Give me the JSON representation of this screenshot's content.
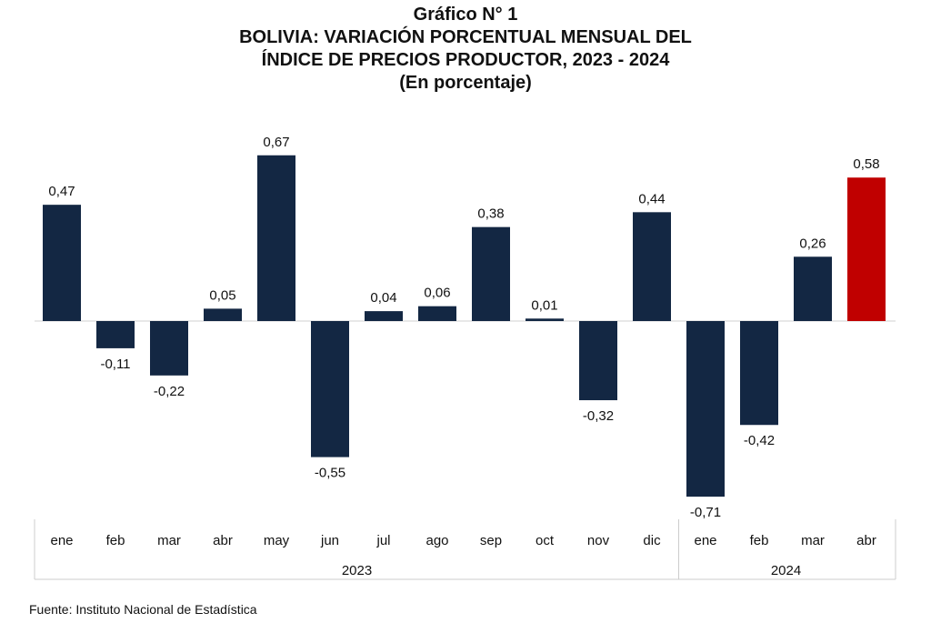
{
  "titles": {
    "line1": "Gráfico N° 1",
    "line2": "BOLIVIA: VARIACIÓN PORCENTUAL MENSUAL DEL",
    "line3": "ÍNDICE DE PRECIOS PRODUCTOR, 2023 - 2024",
    "line4": "(En porcentaje)"
  },
  "source": "Fuente: Instituto Nacional de Estadística",
  "colors": {
    "default_bar": "#132743",
    "highlight_bar": "#c00000",
    "zero_line": "#d0d0d0",
    "axis_line": "#cccccc"
  },
  "chart_data": {
    "type": "bar",
    "title": "BOLIVIA: VARIACIÓN PORCENTUAL MENSUAL DEL ÍNDICE DE PRECIOS PRODUCTOR, 2023 - 2024",
    "subtitle": "(En porcentaje)",
    "categories": [
      "ene",
      "feb",
      "mar",
      "abr",
      "may",
      "jun",
      "jul",
      "ago",
      "sep",
      "oct",
      "nov",
      "dic",
      "ene",
      "feb",
      "mar",
      "abr"
    ],
    "groups": [
      {
        "label": "2023",
        "start": 0,
        "count": 12
      },
      {
        "label": "2024",
        "start": 12,
        "count": 4
      }
    ],
    "values": [
      0.47,
      -0.11,
      -0.22,
      0.05,
      0.67,
      -0.55,
      0.04,
      0.06,
      0.38,
      0.01,
      -0.32,
      0.44,
      -0.71,
      -0.42,
      0.26,
      0.58
    ],
    "value_labels": [
      "0,47",
      "-0,11",
      "-0,22",
      "0,05",
      "0,67",
      "-0,55",
      "0,04",
      "0,06",
      "0,38",
      "0,01",
      "-0,32",
      "0,44",
      "-0,71",
      "-0,42",
      "0,26",
      "0,58"
    ],
    "highlight_index": 15,
    "ylim": [
      -0.75,
      0.7
    ],
    "grid": false,
    "legend": "none"
  }
}
